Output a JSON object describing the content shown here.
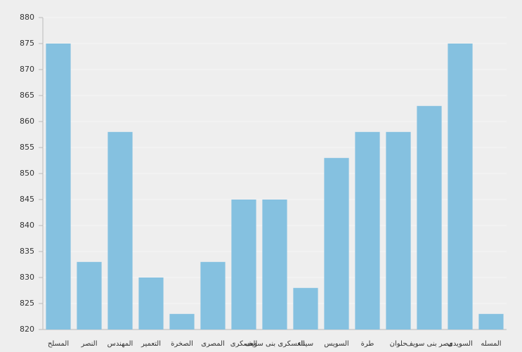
{
  "chart_data": {
    "type": "bar",
    "categories": [
      "المسلح",
      "النصر",
      "المهندس",
      "التعمير",
      "الصخرة",
      "المصرى",
      "العسكرى",
      "العسكرى بنى سويف",
      "سيناء",
      "السويس",
      "طرة",
      "حلوان",
      "مصر بنى سويف",
      "السويدى",
      "المسله"
    ],
    "values": [
      875,
      833,
      858,
      830,
      823,
      833,
      845,
      845,
      828,
      853,
      858,
      858,
      863,
      875,
      823
    ],
    "color": "#85c1e0",
    "ylim": [
      820,
      880
    ],
    "yticks": [
      820,
      825,
      830,
      835,
      840,
      845,
      850,
      855,
      860,
      865,
      870,
      875,
      880
    ],
    "grid": true
  }
}
